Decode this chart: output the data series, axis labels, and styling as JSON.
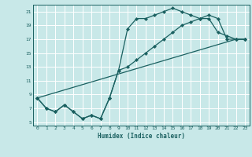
{
  "xlabel": "Humidex (Indice chaleur)",
  "bg_color": "#c8e8e8",
  "grid_color": "#ffffff",
  "line_color": "#1a6060",
  "xlim": [
    -0.5,
    23.5
  ],
  "ylim": [
    4.5,
    22.0
  ],
  "xticks": [
    0,
    1,
    2,
    3,
    4,
    5,
    6,
    7,
    8,
    9,
    10,
    11,
    12,
    13,
    14,
    15,
    16,
    17,
    18,
    19,
    20,
    21,
    22,
    23
  ],
  "yticks": [
    5,
    7,
    9,
    11,
    13,
    15,
    17,
    19,
    21
  ],
  "line1_x": [
    0,
    1,
    2,
    3,
    4,
    5,
    6,
    7,
    8,
    9,
    10,
    11,
    12,
    13,
    14,
    15,
    16,
    17,
    18,
    19,
    20,
    21,
    22,
    23
  ],
  "line1_y": [
    8.5,
    7.0,
    6.5,
    7.5,
    6.5,
    5.5,
    6.0,
    5.5,
    8.5,
    12.5,
    18.5,
    20.0,
    20.0,
    20.5,
    21.0,
    21.5,
    21.0,
    20.5,
    20.0,
    20.0,
    18.0,
    17.5,
    17.0,
    17.0
  ],
  "line2_x": [
    0,
    1,
    2,
    3,
    4,
    5,
    6,
    7,
    8,
    9,
    10,
    11,
    12,
    13,
    14,
    15,
    16,
    17,
    18,
    19,
    20,
    21,
    22,
    23
  ],
  "line2_y": [
    8.5,
    7.0,
    6.5,
    7.5,
    6.5,
    5.5,
    6.0,
    5.5,
    8.5,
    12.5,
    13.0,
    14.0,
    15.0,
    16.0,
    17.0,
    18.0,
    19.0,
    19.5,
    20.0,
    20.5,
    20.0,
    17.0,
    17.0,
    17.0
  ],
  "line3_x": [
    0,
    22,
    23
  ],
  "line3_y": [
    8.5,
    17.0,
    17.0
  ]
}
